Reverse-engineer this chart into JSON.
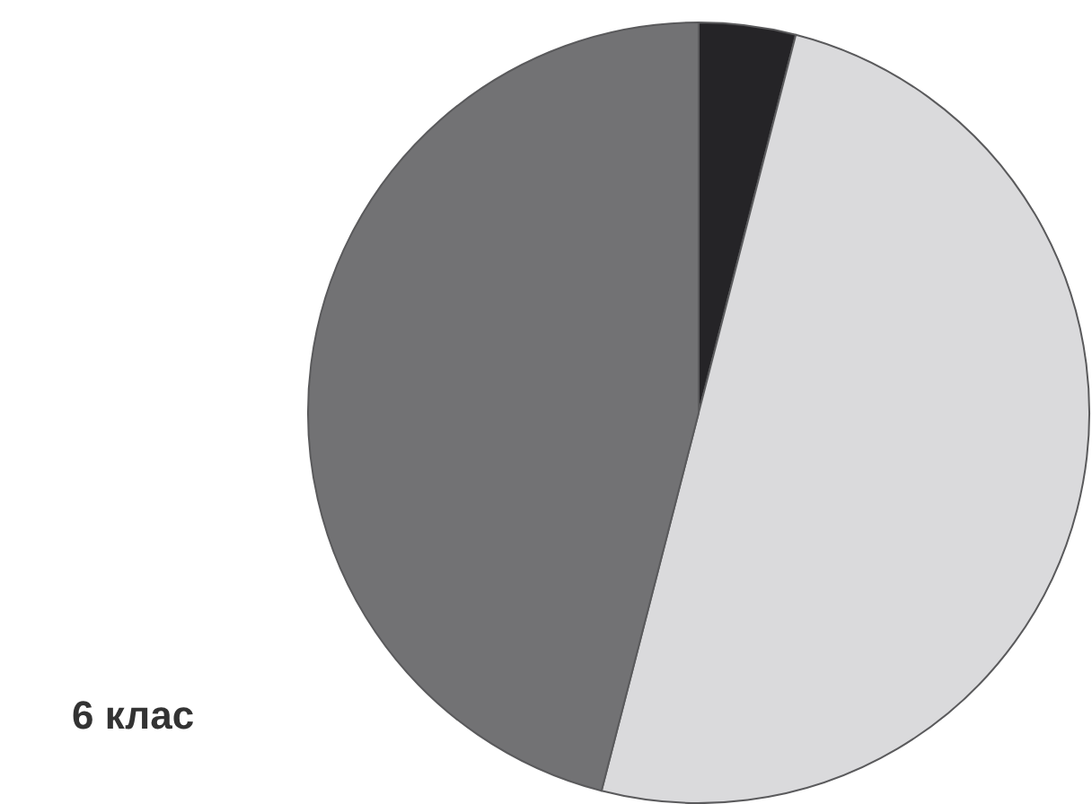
{
  "chart_data": {
    "type": "pie",
    "title": "6 клас",
    "categories": [
      null,
      null,
      null
    ],
    "values": [
      4,
      50,
      46
    ],
    "colors": [
      "#252427",
      "#dadadc",
      "#727274"
    ],
    "legend": false
  }
}
